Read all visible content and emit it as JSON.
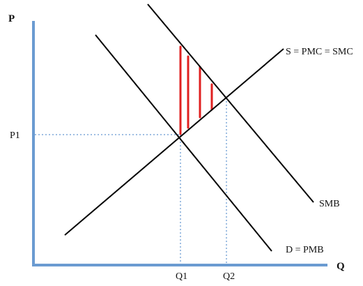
{
  "axes": {
    "y_label": "P",
    "x_label": "Q",
    "axis_color": "#6b9bd1"
  },
  "labels": {
    "price": "P1",
    "quantity_1": "Q1",
    "quantity_2": "Q2"
  },
  "curves": {
    "supply": {
      "label": "S = PMC = SMC"
    },
    "social_benefit": {
      "label": "SMB"
    },
    "demand": {
      "label": "D = PMB"
    }
  },
  "colors": {
    "curves": "#000000",
    "guides": "#7fa8d8",
    "hatch": "#e02020"
  }
}
